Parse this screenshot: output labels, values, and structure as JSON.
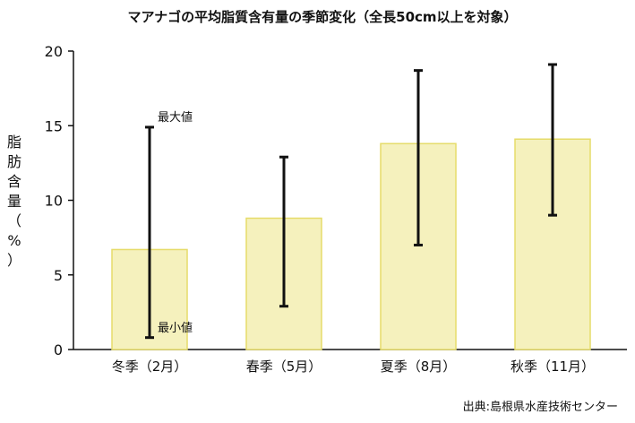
{
  "chart_data": {
    "type": "bar",
    "title": "マアナゴの平均脂質含有量の季節変化（全長50cm以上を対象）",
    "ylabel_chars": [
      "脂",
      "肪",
      "含",
      "量",
      "（",
      "%",
      "）"
    ],
    "categories": [
      "冬季（2月）",
      "春季（5月）",
      "夏季（8月）",
      "秋季（11月）"
    ],
    "values": [
      6.7,
      8.8,
      13.8,
      14.1
    ],
    "error_max": [
      14.9,
      12.9,
      18.7,
      19.1
    ],
    "error_min": [
      0.8,
      2.9,
      7.0,
      9.0
    ],
    "ylim": [
      0,
      20
    ],
    "yticks": [
      0,
      5,
      10,
      15,
      20
    ],
    "ytick_labels": [
      "0",
      "5",
      "10",
      "15",
      "20"
    ],
    "annotations": {
      "max_label": "最大値",
      "min_label": "最小値"
    },
    "colors": {
      "bar_fill": "#f5f1bd",
      "bar_stroke": "#e6dc6a",
      "error_bar": "#111111"
    },
    "grid": false,
    "legend": "none",
    "source": "出典:島根県水産技術センター"
  }
}
